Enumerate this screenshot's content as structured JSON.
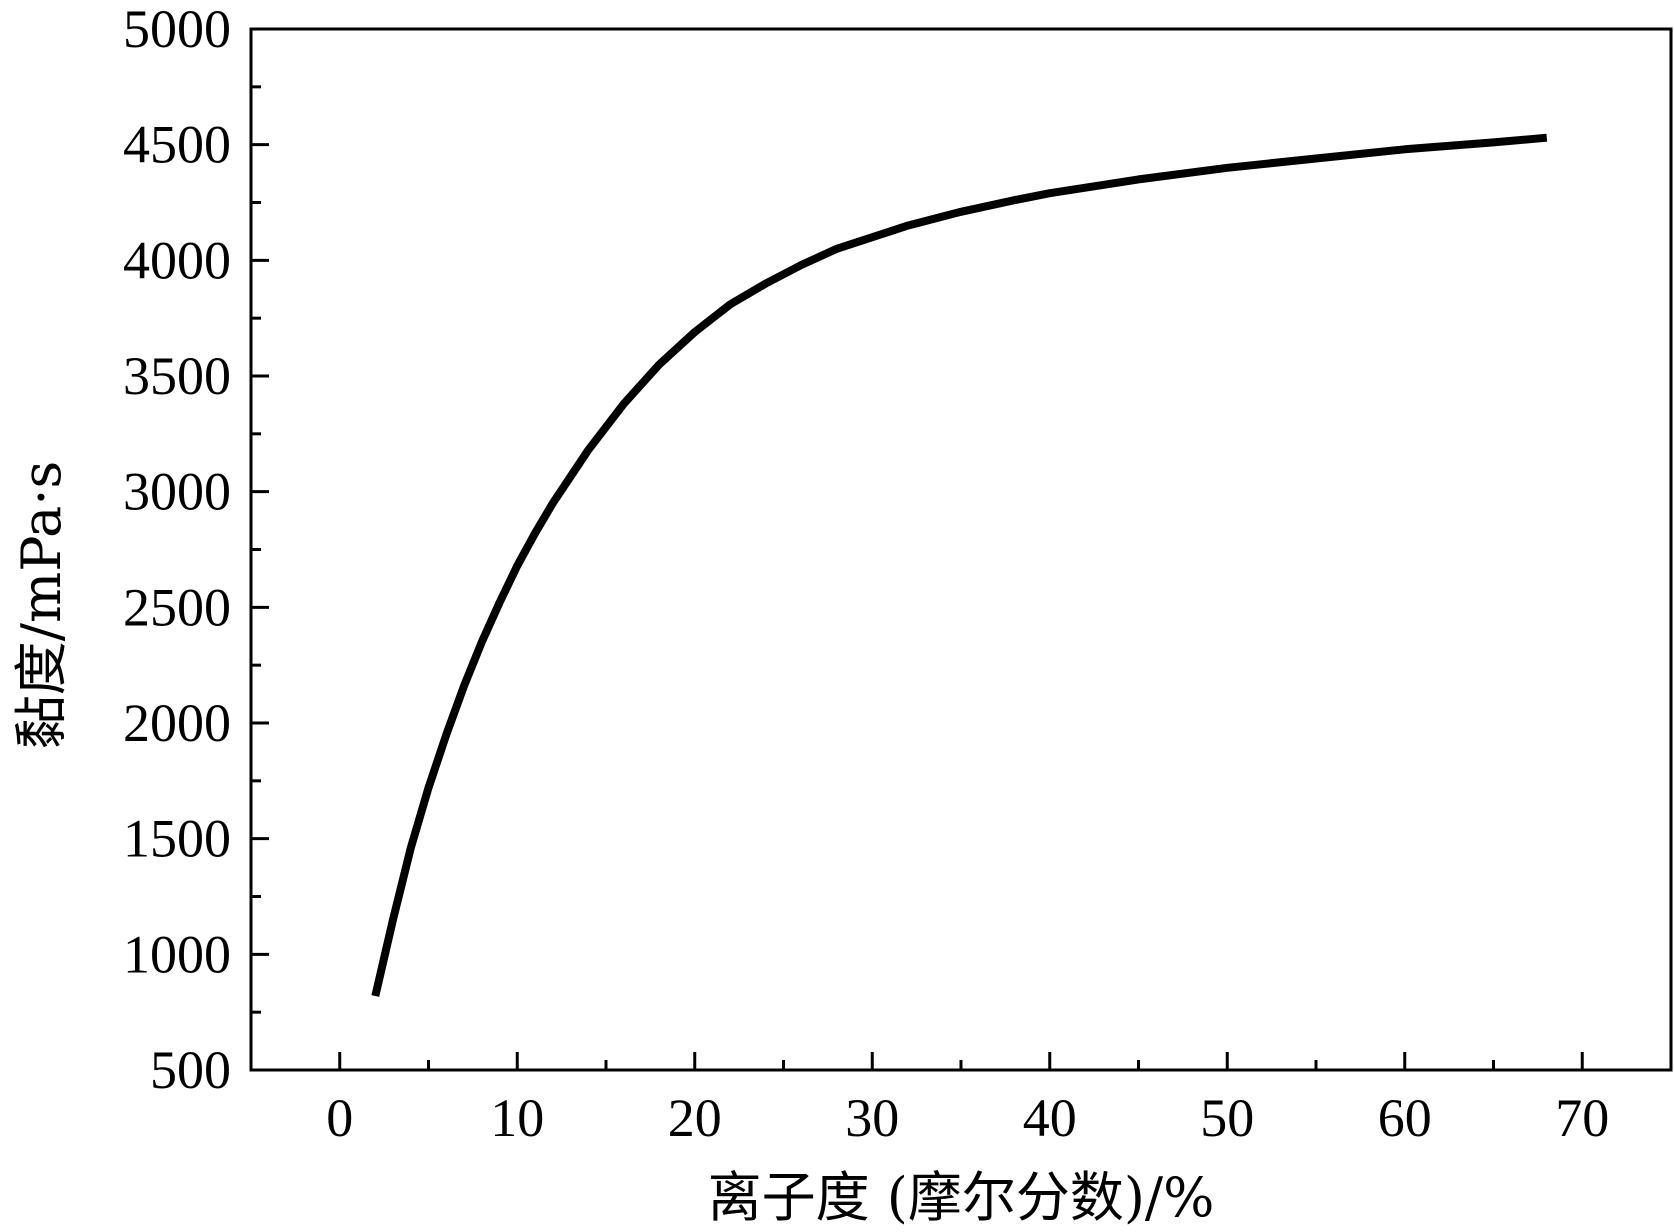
{
  "chart_data": {
    "type": "line",
    "title": "",
    "xlabel": "离子度 (摩尔分数)/%",
    "ylabel": "黏度/mPa·s",
    "xlim": [
      -5,
      75
    ],
    "ylim": [
      500,
      5000
    ],
    "xticks": [
      0,
      10,
      20,
      30,
      40,
      50,
      60,
      70
    ],
    "xticks_minor": [
      -5,
      5,
      15,
      25,
      35,
      45,
      55,
      65,
      75
    ],
    "yticks": [
      500,
      1000,
      1500,
      2000,
      2500,
      3000,
      3500,
      4000,
      4500,
      5000
    ],
    "yticks_minor": [
      750,
      1250,
      1750,
      2250,
      2750,
      3250,
      3750,
      4250,
      4750
    ],
    "grid": false,
    "legend": "none",
    "series": [
      {
        "color": "#000000",
        "x": [
          2,
          3,
          4,
          5,
          6,
          7,
          8,
          9,
          10,
          11,
          12,
          14,
          16,
          18,
          20,
          22,
          24,
          26,
          28,
          30,
          32,
          35,
          38,
          40,
          45,
          50,
          55,
          60,
          65,
          68
        ],
        "y": [
          820,
          1150,
          1460,
          1720,
          1950,
          2160,
          2350,
          2520,
          2680,
          2820,
          2950,
          3180,
          3380,
          3550,
          3690,
          3810,
          3900,
          3980,
          4050,
          4100,
          4150,
          4210,
          4260,
          4290,
          4350,
          4400,
          4440,
          4480,
          4510,
          4530
        ]
      }
    ]
  }
}
